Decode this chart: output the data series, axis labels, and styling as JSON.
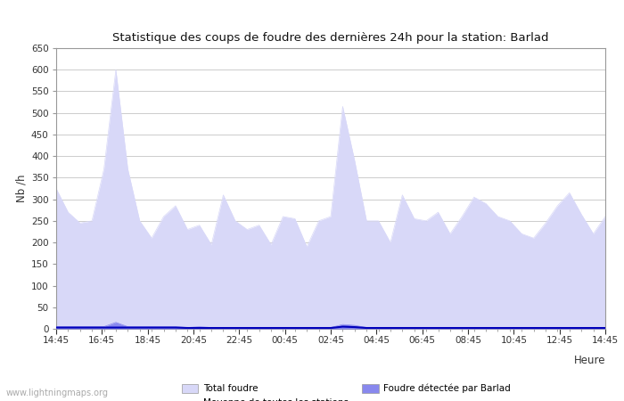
{
  "title": "Statistique des coups de foudre des dernières 24h pour la station: Barlad",
  "xlabel": "Heure",
  "ylabel": "Nb /h",
  "xlabels": [
    "14:45",
    "16:45",
    "18:45",
    "20:45",
    "22:45",
    "00:45",
    "02:45",
    "04:45",
    "06:45",
    "08:45",
    "10:45",
    "12:45",
    "14:45"
  ],
  "ylim": [
    0,
    650
  ],
  "yticks": [
    0,
    50,
    100,
    150,
    200,
    250,
    300,
    350,
    400,
    450,
    500,
    550,
    600,
    650
  ],
  "total_foudre": [
    325,
    270,
    245,
    250,
    370,
    600,
    370,
    250,
    210,
    260,
    285,
    230,
    240,
    195,
    310,
    250,
    230,
    240,
    195,
    260,
    255,
    190,
    250,
    260,
    515,
    390,
    250,
    250,
    200,
    310,
    255,
    250,
    270,
    220,
    260,
    305,
    290,
    260,
    250,
    220,
    210,
    245,
    285,
    315,
    265,
    220,
    260
  ],
  "barlad_foudre": [
    5,
    5,
    5,
    5,
    5,
    15,
    5,
    5,
    5,
    5,
    5,
    3,
    5,
    3,
    3,
    3,
    3,
    3,
    2,
    3,
    3,
    2,
    3,
    3,
    10,
    8,
    3,
    3,
    2,
    3,
    2,
    2,
    2,
    2,
    2,
    2,
    2,
    2,
    2,
    2,
    2,
    2,
    3,
    3,
    2,
    2,
    3
  ],
  "moyenne": [
    3,
    3,
    3,
    3,
    3,
    3,
    3,
    3,
    3,
    3,
    3,
    2,
    2,
    2,
    2,
    2,
    2,
    2,
    2,
    2,
    2,
    2,
    2,
    2,
    5,
    4,
    2,
    2,
    2,
    2,
    2,
    2,
    2,
    2,
    2,
    2,
    2,
    2,
    2,
    2,
    2,
    2,
    2,
    2,
    2,
    2,
    2
  ],
  "total_foudre_color": "#d8d8f8",
  "barlad_foudre_color": "#8888ee",
  "moyenne_color": "#0000bb",
  "plot_bg_color": "#ffffff",
  "fig_bg_color": "#ffffff",
  "grid_color": "#cccccc",
  "spine_color": "#999999",
  "tick_color": "#333333",
  "watermark": "www.lightningmaps.org",
  "watermark_color": "#aaaaaa",
  "n_points": 47
}
